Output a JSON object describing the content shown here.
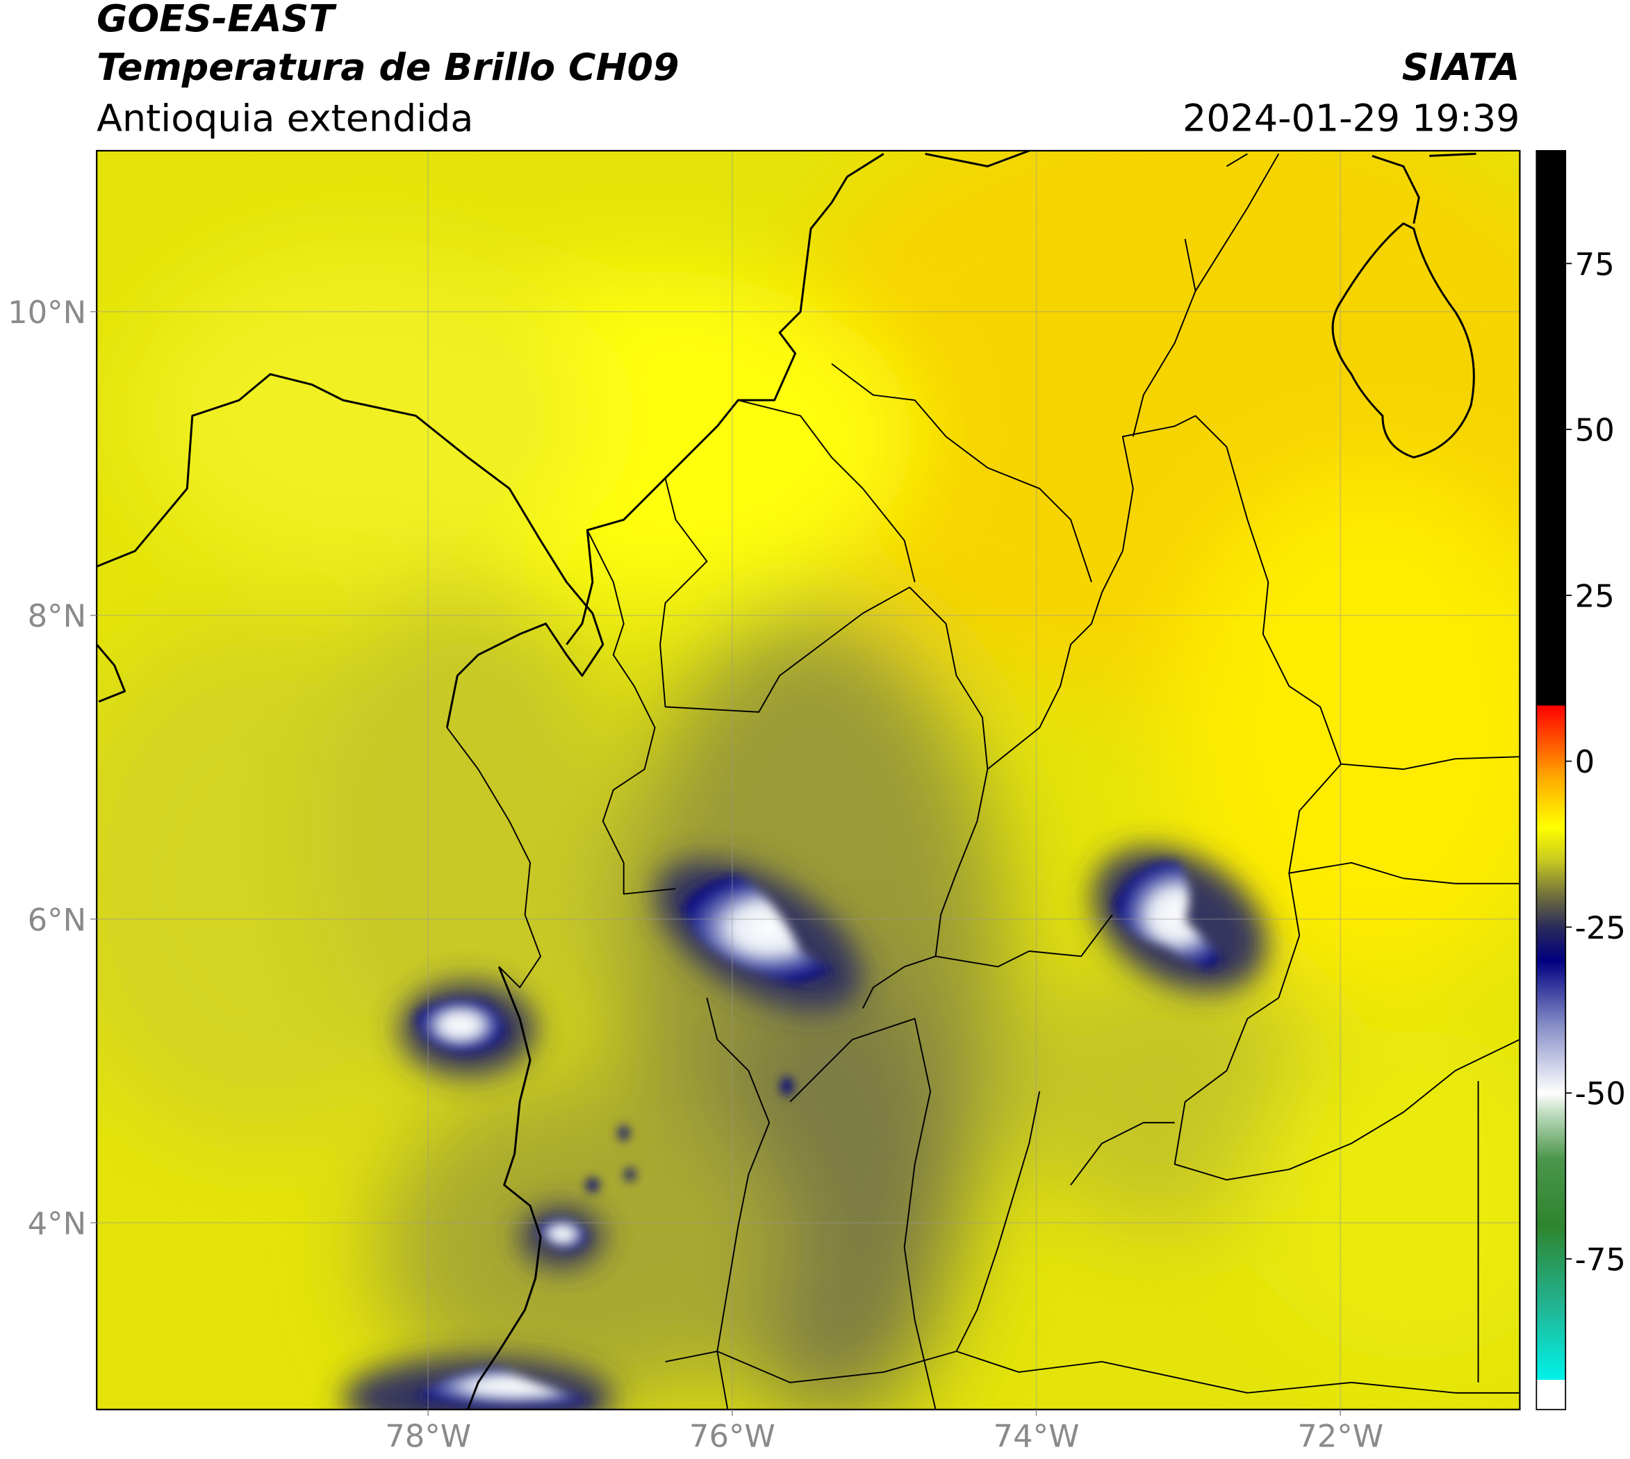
{
  "chart_data": {
    "type": "map",
    "title": "GOES-EAST",
    "subtitle": "Temperatura de Brillo CH09",
    "region": "Antioquia extendida",
    "source": "SIATA",
    "timestamp": "2024-01-29 19:39",
    "xlim": [
      -80.18,
      -70.82
    ],
    "xticks": [
      {
        "value": -78,
        "label": "78°W"
      },
      {
        "value": -76,
        "label": "76°W"
      },
      {
        "value": -74,
        "label": "74°W"
      },
      {
        "value": -72,
        "label": "72°W"
      }
    ],
    "ylim": [
      2.77,
      11.06
    ],
    "yticks": [
      {
        "value": 4,
        "label": "4°N"
      },
      {
        "value": 6,
        "label": "6°N"
      },
      {
        "value": 8,
        "label": "8°N"
      },
      {
        "value": 10,
        "label": "10°N"
      }
    ],
    "grid": true,
    "colorbar": {
      "lim": [
        -97.7,
        92
      ],
      "ticks": [
        -75,
        -50,
        -25,
        0,
        25,
        50,
        75
      ],
      "stops": [
        [
          -97.7,
          "#ffffff"
        ],
        [
          -93.2,
          "#ffffff"
        ],
        [
          -93.2,
          "#00f2ea"
        ],
        [
          -82,
          "#22b491"
        ],
        [
          -70,
          "#2e842e"
        ],
        [
          -60,
          "#4b964b"
        ],
        [
          -53,
          "#c0dcc0"
        ],
        [
          -50,
          "#ffffff"
        ],
        [
          -40,
          "#8890c8"
        ],
        [
          -30,
          "#000080"
        ],
        [
          -25,
          "#2a2a5a"
        ],
        [
          -20,
          "#74743c"
        ],
        [
          -15,
          "#c8c820"
        ],
        [
          -10,
          "#ffff00"
        ],
        [
          -3,
          "#ffb000"
        ],
        [
          8.4,
          "#ff0000"
        ],
        [
          8.4,
          "#000000"
        ],
        [
          92,
          "#000000"
        ]
      ]
    }
  }
}
